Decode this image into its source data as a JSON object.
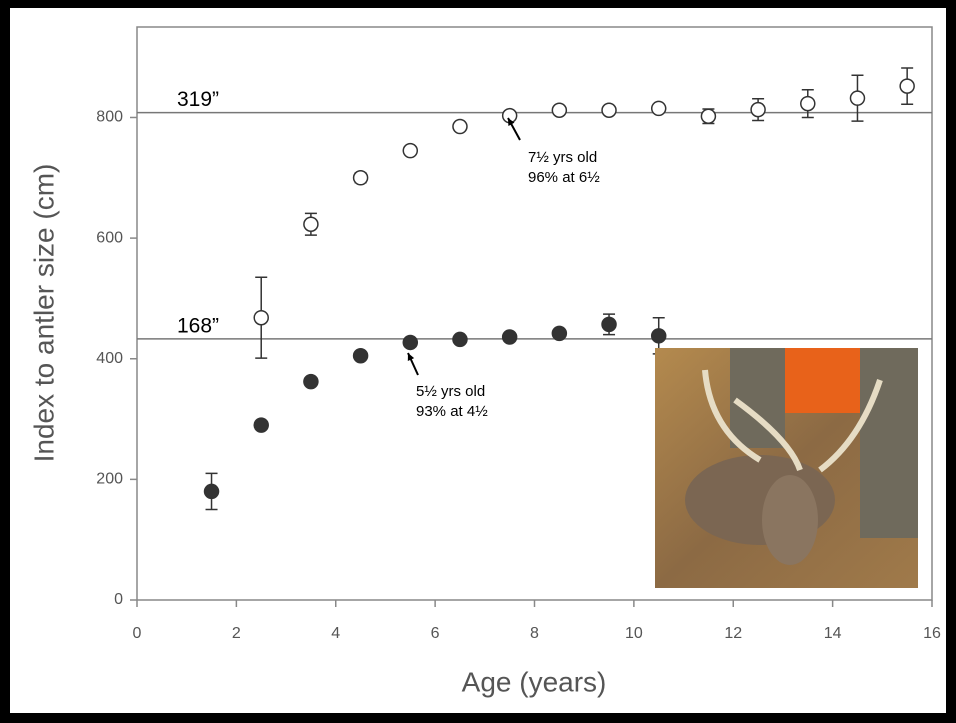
{
  "chart_data": {
    "type": "scatter",
    "xlabel": "Age (years)",
    "ylabel": "Index to antler size (cm)",
    "xlim": [
      0,
      16
    ],
    "xticks": [
      0,
      2,
      4,
      6,
      8,
      10,
      12,
      14,
      16
    ],
    "ylim": [
      0,
      950
    ],
    "yticks": [
      0,
      200,
      400,
      600,
      800
    ],
    "series": [
      {
        "marker": "open",
        "color": "#333333",
        "x": [
          2.5,
          3.5,
          4.5,
          5.5,
          6.5,
          7.5,
          8.5,
          9.5,
          10.5,
          11.5,
          12.5,
          13.5,
          14.5,
          15.5
        ],
        "values": [
          468,
          623,
          700,
          745,
          785,
          803,
          812,
          812,
          815,
          802,
          813,
          823,
          832,
          852
        ],
        "errors": [
          67,
          18,
          8,
          5,
          5,
          5,
          6,
          6,
          7,
          12,
          18,
          23,
          38,
          30
        ]
      },
      {
        "marker": "filled",
        "color": "#333333",
        "x": [
          1.5,
          2.5,
          3.5,
          4.5,
          5.5,
          6.5,
          7.5,
          8.5,
          9.5,
          10.5
        ],
        "values": [
          180,
          290,
          362,
          405,
          427,
          432,
          436,
          442,
          457,
          438
        ],
        "errors": [
          30,
          5,
          5,
          5,
          5,
          5,
          5,
          6,
          17,
          30
        ]
      }
    ],
    "reference_lines": [
      {
        "value": 808,
        "label": "319”"
      },
      {
        "value": 433,
        "label": "168”"
      }
    ],
    "annotations": [
      {
        "lines": [
          "7½ yrs old",
          "96% at 6½"
        ]
      },
      {
        "lines": [
          "5½ yrs old",
          "93% at 4½"
        ]
      }
    ]
  }
}
